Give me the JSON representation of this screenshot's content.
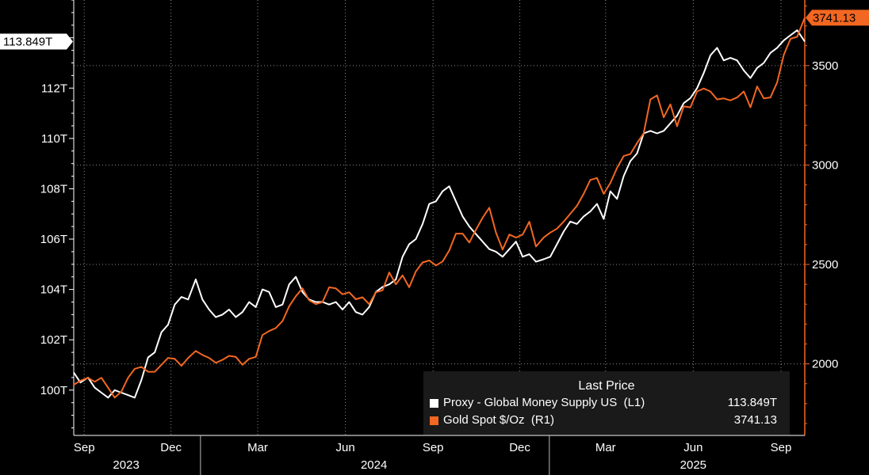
{
  "chart_data": {
    "type": "line",
    "x_range": [
      "2023-08-21",
      "2025-09-26"
    ],
    "x_ticks": [
      {
        "label": "Sep",
        "date": "2023-09-01"
      },
      {
        "label": "Dec",
        "date": "2023-12-01"
      },
      {
        "label": "Mar",
        "date": "2024-03-01"
      },
      {
        "label": "Jun",
        "date": "2024-06-01"
      },
      {
        "label": "Sep",
        "date": "2024-09-01"
      },
      {
        "label": "Dec",
        "date": "2024-12-01"
      },
      {
        "label": "Mar",
        "date": "2025-03-01"
      },
      {
        "label": "Jun",
        "date": "2025-06-01"
      },
      {
        "label": "Sep",
        "date": "2025-09-01"
      }
    ],
    "x_years": [
      {
        "label": "2023",
        "date": "2023-10-15"
      },
      {
        "label": "2024",
        "date": "2024-07-01"
      },
      {
        "label": "2025",
        "date": "2025-06-01"
      }
    ],
    "year_dividers": [
      "2024-01-01",
      "2025-01-01"
    ],
    "y_left": {
      "range": [
        98.2,
        115.5
      ],
      "ticks": [
        100,
        102,
        104,
        106,
        108,
        110,
        112
      ],
      "tick_labels": [
        "100T",
        "102T",
        "104T",
        "106T",
        "108T",
        "110T",
        "112T"
      ],
      "minor_step": 0.5
    },
    "y_right": {
      "range": [
        1640,
        3830
      ],
      "ticks": [
        2000,
        2500,
        3000,
        3500
      ],
      "tick_labels": [
        "2000",
        "2500",
        "3000",
        "3500"
      ],
      "minor_step": 100
    },
    "grid": true,
    "legend": {
      "position": "bottom-right",
      "title": "Last Price"
    },
    "series": [
      {
        "name": "Proxy - Global Money Supply US  (L1)",
        "axis": "left",
        "color": "#ffffff",
        "last_label": "113.849T",
        "last_value": 113.849,
        "points": [
          [
            "2023-08-21",
            100.7
          ],
          [
            "2023-08-28",
            100.3
          ],
          [
            "2023-09-05",
            100.5
          ],
          [
            "2023-09-12",
            100.1
          ],
          [
            "2023-09-19",
            99.9
          ],
          [
            "2023-09-26",
            99.7
          ],
          [
            "2023-10-03",
            100.0
          ],
          [
            "2023-10-10",
            99.9
          ],
          [
            "2023-10-17",
            99.8
          ],
          [
            "2023-10-24",
            99.7
          ],
          [
            "2023-10-31",
            100.4
          ],
          [
            "2023-11-07",
            101.3
          ],
          [
            "2023-11-14",
            101.5
          ],
          [
            "2023-11-21",
            102.3
          ],
          [
            "2023-11-28",
            102.6
          ],
          [
            "2023-12-05",
            103.4
          ],
          [
            "2023-12-12",
            103.7
          ],
          [
            "2023-12-19",
            103.6
          ],
          [
            "2023-12-27",
            104.4
          ],
          [
            "2024-01-03",
            103.6
          ],
          [
            "2024-01-10",
            103.2
          ],
          [
            "2024-01-17",
            102.9
          ],
          [
            "2024-01-24",
            103.0
          ],
          [
            "2024-01-31",
            103.2
          ],
          [
            "2024-02-07",
            102.9
          ],
          [
            "2024-02-14",
            103.1
          ],
          [
            "2024-02-21",
            103.5
          ],
          [
            "2024-02-28",
            103.3
          ],
          [
            "2024-03-06",
            104.0
          ],
          [
            "2024-03-13",
            103.9
          ],
          [
            "2024-03-20",
            103.3
          ],
          [
            "2024-03-27",
            103.4
          ],
          [
            "2024-04-03",
            104.2
          ],
          [
            "2024-04-10",
            104.5
          ],
          [
            "2024-04-17",
            103.9
          ],
          [
            "2024-04-24",
            103.6
          ],
          [
            "2024-05-01",
            103.5
          ],
          [
            "2024-05-08",
            103.5
          ],
          [
            "2024-05-15",
            103.4
          ],
          [
            "2024-05-22",
            103.5
          ],
          [
            "2024-05-29",
            103.2
          ],
          [
            "2024-06-05",
            103.5
          ],
          [
            "2024-06-12",
            103.1
          ],
          [
            "2024-06-19",
            103.0
          ],
          [
            "2024-06-26",
            103.3
          ],
          [
            "2024-07-03",
            103.9
          ],
          [
            "2024-07-10",
            104.1
          ],
          [
            "2024-07-17",
            104.2
          ],
          [
            "2024-07-24",
            104.4
          ],
          [
            "2024-07-31",
            105.3
          ],
          [
            "2024-08-07",
            105.8
          ],
          [
            "2024-08-14",
            106.0
          ],
          [
            "2024-08-21",
            106.6
          ],
          [
            "2024-08-28",
            107.4
          ],
          [
            "2024-09-04",
            107.5
          ],
          [
            "2024-09-11",
            107.9
          ],
          [
            "2024-09-18",
            108.1
          ],
          [
            "2024-09-25",
            107.5
          ],
          [
            "2024-10-02",
            106.9
          ],
          [
            "2024-10-09",
            106.5
          ],
          [
            "2024-10-16",
            106.2
          ],
          [
            "2024-10-23",
            105.9
          ],
          [
            "2024-10-30",
            105.6
          ],
          [
            "2024-11-06",
            105.5
          ],
          [
            "2024-11-13",
            105.3
          ],
          [
            "2024-11-20",
            105.6
          ],
          [
            "2024-11-27",
            105.9
          ],
          [
            "2024-12-04",
            105.3
          ],
          [
            "2024-12-11",
            105.4
          ],
          [
            "2024-12-18",
            105.1
          ],
          [
            "2024-12-26",
            105.2
          ],
          [
            "2025-01-02",
            105.3
          ],
          [
            "2025-01-09",
            105.8
          ],
          [
            "2025-01-16",
            106.3
          ],
          [
            "2025-01-23",
            106.7
          ],
          [
            "2025-01-30",
            106.6
          ],
          [
            "2025-02-06",
            106.9
          ],
          [
            "2025-02-13",
            107.1
          ],
          [
            "2025-02-20",
            107.4
          ],
          [
            "2025-02-27",
            106.8
          ],
          [
            "2025-03-06",
            107.9
          ],
          [
            "2025-03-13",
            107.6
          ],
          [
            "2025-03-20",
            108.5
          ],
          [
            "2025-03-27",
            109.1
          ],
          [
            "2025-04-03",
            109.4
          ],
          [
            "2025-04-10",
            110.2
          ],
          [
            "2025-04-17",
            110.3
          ],
          [
            "2025-04-24",
            110.2
          ],
          [
            "2025-05-01",
            110.3
          ],
          [
            "2025-05-08",
            110.6
          ],
          [
            "2025-05-15",
            110.9
          ],
          [
            "2025-05-22",
            111.4
          ],
          [
            "2025-05-29",
            111.6
          ],
          [
            "2025-06-05",
            112.0
          ],
          [
            "2025-06-12",
            112.6
          ],
          [
            "2025-06-19",
            113.3
          ],
          [
            "2025-06-26",
            113.6
          ],
          [
            "2025-07-03",
            113.1
          ],
          [
            "2025-07-10",
            113.2
          ],
          [
            "2025-07-17",
            113.1
          ],
          [
            "2025-07-24",
            112.7
          ],
          [
            "2025-07-31",
            112.4
          ],
          [
            "2025-08-07",
            112.8
          ],
          [
            "2025-08-14",
            113.0
          ],
          [
            "2025-08-21",
            113.4
          ],
          [
            "2025-08-28",
            113.6
          ],
          [
            "2025-09-04",
            113.9
          ],
          [
            "2025-09-11",
            114.1
          ],
          [
            "2025-09-18",
            114.3
          ],
          [
            "2025-09-26",
            113.849
          ]
        ]
      },
      {
        "name": "Gold Spot $/Oz  (R1)",
        "axis": "right",
        "color": "#f26722",
        "last_label": "3741.13",
        "last_value": 3741.13,
        "points": [
          [
            "2023-08-21",
            1895
          ],
          [
            "2023-08-28",
            1915
          ],
          [
            "2023-09-05",
            1930
          ],
          [
            "2023-09-12",
            1910
          ],
          [
            "2023-09-19",
            1930
          ],
          [
            "2023-09-26",
            1880
          ],
          [
            "2023-10-03",
            1830
          ],
          [
            "2023-10-10",
            1860
          ],
          [
            "2023-10-17",
            1930
          ],
          [
            "2023-10-24",
            1975
          ],
          [
            "2023-10-31",
            1985
          ],
          [
            "2023-11-07",
            1960
          ],
          [
            "2023-11-14",
            1960
          ],
          [
            "2023-11-21",
            1995
          ],
          [
            "2023-11-28",
            2030
          ],
          [
            "2023-12-05",
            2025
          ],
          [
            "2023-12-12",
            1990
          ],
          [
            "2023-12-19",
            2030
          ],
          [
            "2023-12-27",
            2065
          ],
          [
            "2024-01-03",
            2045
          ],
          [
            "2024-01-10",
            2030
          ],
          [
            "2024-01-17",
            2005
          ],
          [
            "2024-01-24",
            2020
          ],
          [
            "2024-01-31",
            2040
          ],
          [
            "2024-02-07",
            2035
          ],
          [
            "2024-02-14",
            1995
          ],
          [
            "2024-02-21",
            2025
          ],
          [
            "2024-02-28",
            2035
          ],
          [
            "2024-03-06",
            2145
          ],
          [
            "2024-03-13",
            2165
          ],
          [
            "2024-03-20",
            2180
          ],
          [
            "2024-03-27",
            2215
          ],
          [
            "2024-04-03",
            2290
          ],
          [
            "2024-04-10",
            2340
          ],
          [
            "2024-04-17",
            2380
          ],
          [
            "2024-04-24",
            2320
          ],
          [
            "2024-05-01",
            2300
          ],
          [
            "2024-05-08",
            2310
          ],
          [
            "2024-05-15",
            2385
          ],
          [
            "2024-05-22",
            2380
          ],
          [
            "2024-05-29",
            2350
          ],
          [
            "2024-06-05",
            2360
          ],
          [
            "2024-06-12",
            2325
          ],
          [
            "2024-06-19",
            2335
          ],
          [
            "2024-06-26",
            2300
          ],
          [
            "2024-07-03",
            2360
          ],
          [
            "2024-07-10",
            2370
          ],
          [
            "2024-07-17",
            2460
          ],
          [
            "2024-07-24",
            2400
          ],
          [
            "2024-07-31",
            2445
          ],
          [
            "2024-08-07",
            2385
          ],
          [
            "2024-08-14",
            2465
          ],
          [
            "2024-08-21",
            2510
          ],
          [
            "2024-08-28",
            2520
          ],
          [
            "2024-09-04",
            2495
          ],
          [
            "2024-09-11",
            2515
          ],
          [
            "2024-09-18",
            2570
          ],
          [
            "2024-09-25",
            2655
          ],
          [
            "2024-10-02",
            2655
          ],
          [
            "2024-10-09",
            2610
          ],
          [
            "2024-10-16",
            2675
          ],
          [
            "2024-10-23",
            2735
          ],
          [
            "2024-10-30",
            2785
          ],
          [
            "2024-11-06",
            2660
          ],
          [
            "2024-11-13",
            2575
          ],
          [
            "2024-11-20",
            2650
          ],
          [
            "2024-11-27",
            2635
          ],
          [
            "2024-12-04",
            2650
          ],
          [
            "2024-12-11",
            2715
          ],
          [
            "2024-12-18",
            2590
          ],
          [
            "2024-12-26",
            2635
          ],
          [
            "2025-01-02",
            2660
          ],
          [
            "2025-01-09",
            2680
          ],
          [
            "2025-01-16",
            2715
          ],
          [
            "2025-01-23",
            2755
          ],
          [
            "2025-01-30",
            2795
          ],
          [
            "2025-02-06",
            2855
          ],
          [
            "2025-02-13",
            2925
          ],
          [
            "2025-02-20",
            2935
          ],
          [
            "2025-02-27",
            2855
          ],
          [
            "2025-03-06",
            2910
          ],
          [
            "2025-03-13",
            2985
          ],
          [
            "2025-03-20",
            3045
          ],
          [
            "2025-03-27",
            3055
          ],
          [
            "2025-04-03",
            3110
          ],
          [
            "2025-04-10",
            3160
          ],
          [
            "2025-04-17",
            3330
          ],
          [
            "2025-04-24",
            3350
          ],
          [
            "2025-05-01",
            3240
          ],
          [
            "2025-05-08",
            3305
          ],
          [
            "2025-05-15",
            3195
          ],
          [
            "2025-05-22",
            3295
          ],
          [
            "2025-05-29",
            3290
          ],
          [
            "2025-06-05",
            3370
          ],
          [
            "2025-06-12",
            3385
          ],
          [
            "2025-06-19",
            3370
          ],
          [
            "2025-06-26",
            3330
          ],
          [
            "2025-07-03",
            3335
          ],
          [
            "2025-07-10",
            3325
          ],
          [
            "2025-07-17",
            3340
          ],
          [
            "2025-07-24",
            3370
          ],
          [
            "2025-07-31",
            3290
          ],
          [
            "2025-08-07",
            3395
          ],
          [
            "2025-08-14",
            3335
          ],
          [
            "2025-08-21",
            3340
          ],
          [
            "2025-08-28",
            3415
          ],
          [
            "2025-09-04",
            3555
          ],
          [
            "2025-09-11",
            3635
          ],
          [
            "2025-09-18",
            3645
          ],
          [
            "2025-09-26",
            3741.13
          ]
        ]
      }
    ]
  }
}
